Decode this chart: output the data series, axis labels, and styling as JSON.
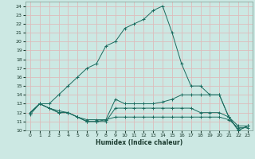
{
  "xlabel": "Humidex (Indice chaleur)",
  "background_color": "#cce8e3",
  "grid_color": "#ddbcbc",
  "line_color": "#1a6b5e",
  "xlim": [
    -0.5,
    23.5
  ],
  "ylim": [
    10,
    24.5
  ],
  "yticks": [
    10,
    11,
    12,
    13,
    14,
    15,
    16,
    17,
    18,
    19,
    20,
    21,
    22,
    23,
    24
  ],
  "xticks": [
    0,
    1,
    2,
    3,
    4,
    5,
    6,
    7,
    8,
    9,
    10,
    11,
    12,
    13,
    14,
    15,
    16,
    17,
    18,
    19,
    20,
    21,
    22,
    23
  ],
  "lines": [
    {
      "x": [
        0,
        1,
        2,
        3,
        4,
        5,
        6,
        7,
        8,
        9,
        10,
        11,
        12,
        13,
        14,
        15,
        16,
        17,
        18,
        19,
        20,
        21,
        22,
        23
      ],
      "y": [
        12,
        13,
        13,
        14,
        15,
        16,
        17,
        17.5,
        19.5,
        20,
        21.5,
        22.0,
        22.5,
        23.5,
        24,
        21,
        17.5,
        15,
        15,
        14,
        14,
        11.5,
        10,
        10.5
      ]
    },
    {
      "x": [
        0,
        1,
        2,
        3,
        4,
        5,
        6,
        7,
        8,
        9,
        10,
        11,
        12,
        13,
        14,
        15,
        16,
        17,
        18,
        19,
        20,
        21,
        22,
        23
      ],
      "y": [
        12,
        13,
        12.5,
        12.2,
        12,
        11.5,
        11,
        11,
        11.2,
        13.5,
        13,
        13,
        13,
        13,
        13.2,
        13.5,
        14,
        14,
        14,
        14,
        14,
        11.5,
        10,
        10.5
      ]
    },
    {
      "x": [
        0,
        1,
        2,
        3,
        4,
        5,
        6,
        7,
        8,
        9,
        10,
        11,
        12,
        13,
        14,
        15,
        16,
        17,
        18,
        19,
        20,
        21,
        22,
        23
      ],
      "y": [
        12,
        13,
        12.5,
        12,
        12,
        11.5,
        11,
        11,
        11,
        12.5,
        12.5,
        12.5,
        12.5,
        12.5,
        12.5,
        12.5,
        12.5,
        12.5,
        12,
        12,
        12,
        11.5,
        10.5,
        10.5
      ]
    },
    {
      "x": [
        0,
        1,
        2,
        3,
        4,
        5,
        6,
        7,
        8,
        9,
        10,
        11,
        12,
        13,
        14,
        15,
        16,
        17,
        18,
        19,
        20,
        21,
        22,
        23
      ],
      "y": [
        11.8,
        13,
        12.5,
        12,
        12,
        11.5,
        11.2,
        11.2,
        11.2,
        11.5,
        11.5,
        11.5,
        11.5,
        11.5,
        11.5,
        11.5,
        11.5,
        11.5,
        11.5,
        11.5,
        11.5,
        11.2,
        10.3,
        10.3
      ]
    }
  ]
}
